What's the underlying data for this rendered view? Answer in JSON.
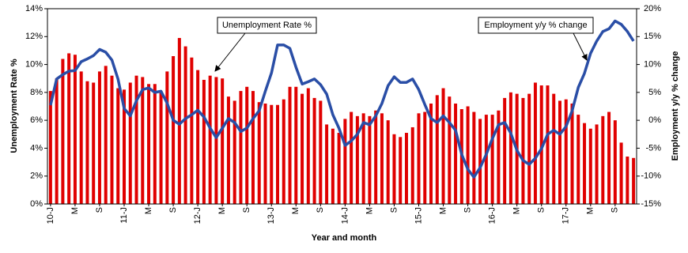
{
  "chart_data": {
    "type": "bar-line",
    "x_label": "Year and month",
    "y_label": "Unemployment Rate %",
    "y2_label": "Employment y/y % change",
    "categories": [
      "10-J",
      null,
      null,
      null,
      "M",
      null,
      null,
      null,
      "S",
      null,
      null,
      null,
      "11-J",
      null,
      null,
      null,
      "M",
      null,
      null,
      null,
      "S",
      null,
      null,
      null,
      "12-J",
      null,
      null,
      null,
      "M",
      null,
      null,
      null,
      "S",
      null,
      null,
      null,
      "13-J",
      null,
      null,
      null,
      "M",
      null,
      null,
      null,
      "S",
      null,
      null,
      null,
      "14-J",
      null,
      null,
      null,
      "M",
      null,
      null,
      null,
      "S",
      null,
      null,
      null,
      "15-J",
      null,
      null,
      null,
      "M",
      null,
      null,
      null,
      "S",
      null,
      null,
      null,
      "16-J",
      null,
      null,
      null,
      "M",
      null,
      null,
      null,
      "S",
      null,
      null,
      null,
      "17-J",
      null,
      null,
      null,
      "M",
      null,
      null,
      null,
      "S",
      null,
      null,
      null
    ],
    "series": [
      {
        "name": "Unemployment Rate %",
        "type": "bar",
        "color": "#e00000",
        "values": [
          8.1,
          9.0,
          10.4,
          10.8,
          10.7,
          9.5,
          8.8,
          8.7,
          9.5,
          9.9,
          9.2,
          8.3,
          8.2,
          8.7,
          9.2,
          9.1,
          8.6,
          8.6,
          8.1,
          9.5,
          10.6,
          11.9,
          11.3,
          10.5,
          9.6,
          8.9,
          9.2,
          9.1,
          9.0,
          7.7,
          7.4,
          8.1,
          8.4,
          8.1,
          7.3,
          7.2,
          7.1,
          7.1,
          7.5,
          8.4,
          8.4,
          7.9,
          8.3,
          7.6,
          7.4,
          5.7,
          5.4,
          5.1,
          6.1,
          6.6,
          6.3,
          6.5,
          6.3,
          6.7,
          6.5,
          6.0,
          5.0,
          4.8,
          5.1,
          5.5,
          6.5,
          6.6,
          7.2,
          7.8,
          8.3,
          7.7,
          7.2,
          6.8,
          7.0,
          6.6,
          6.1,
          6.4,
          6.4,
          6.7,
          7.6,
          8.0,
          7.9,
          7.6,
          7.9,
          8.7,
          8.5,
          8.5,
          7.9,
          7.4,
          7.5,
          7.2,
          6.4,
          5.8,
          5.4,
          5.7,
          6.3,
          6.6,
          6.0,
          4.4,
          3.4,
          3.3
        ]
      },
      {
        "name": "Employment y/y % change",
        "type": "line",
        "axis": "y2",
        "color": "#2a4ea6",
        "values": [
          2.7,
          7.4,
          8.2,
          8.8,
          8.9,
          10.5,
          11.0,
          11.6,
          12.7,
          12.2,
          10.8,
          7.4,
          2.1,
          0.8,
          3.5,
          5.5,
          5.8,
          5.0,
          5.2,
          3.1,
          0,
          -0.7,
          0.3,
          1.0,
          1.8,
          0.6,
          -1.4,
          -3.1,
          -1.4,
          0.3,
          -0.4,
          -2.0,
          -1.4,
          0.3,
          1.7,
          5.2,
          8.5,
          13.5,
          13.5,
          12.9,
          9.5,
          6.5,
          6.9,
          7.4,
          6.4,
          4.7,
          1.0,
          -1.4,
          -4.5,
          -3.7,
          -2.5,
          -0.4,
          -0.8,
          0.8,
          3.0,
          6.2,
          7.8,
          6.8,
          6.8,
          7.4,
          5.5,
          2.8,
          0.3,
          -0.4,
          0.8,
          -0.4,
          -1.8,
          -6.1,
          -8.8,
          -10.2,
          -8.5,
          -6.1,
          -3.3,
          -0.8,
          -0.4,
          -2.3,
          -5.4,
          -7.2,
          -7.9,
          -6.8,
          -5.1,
          -2.5,
          -1.8,
          -2.5,
          -1.1,
          1.7,
          5.9,
          8.4,
          12.0,
          14.2,
          15.9,
          16.4,
          17.8,
          17.2,
          15.9,
          14.2
        ]
      }
    ],
    "ylim": [
      0,
      14
    ],
    "yticks": [
      {
        "value": 0,
        "label": "0%"
      },
      {
        "value": 2,
        "label": "2%"
      },
      {
        "value": 4,
        "label": "4%"
      },
      {
        "value": 6,
        "label": "6%"
      },
      {
        "value": 8,
        "label": "8%"
      },
      {
        "value": 10,
        "label": "10%"
      },
      {
        "value": 12,
        "label": "12%"
      },
      {
        "value": 14,
        "label": "14%"
      }
    ],
    "y2lim": [
      -15,
      20
    ],
    "y2ticks": [
      {
        "value": -15,
        "label": "-15%"
      },
      {
        "value": -10,
        "label": "-10%"
      },
      {
        "value": -5,
        "label": "-5%"
      },
      {
        "value": 0,
        "label": "0%"
      },
      {
        "value": 5,
        "label": "5%"
      },
      {
        "value": 10,
        "label": "10%"
      },
      {
        "value": 15,
        "label": "15%"
      },
      {
        "value": 20,
        "label": "20%"
      }
    ]
  }
}
